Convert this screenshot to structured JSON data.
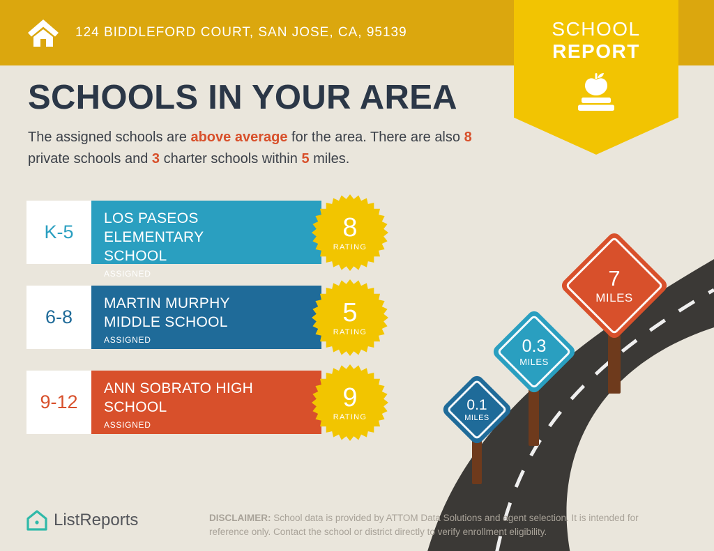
{
  "colors": {
    "topbar_gold": "#DBA70E",
    "ribbon_yellow": "#F2C402",
    "badge_yellow": "#F2C500",
    "background_beige": "#EAE6DC",
    "title_navy": "#2B3747",
    "accent_orange": "#D8502B",
    "school_teal": "#2A9FC0",
    "school_blue": "#1F6B99",
    "road_gray": "#3B3936",
    "post_brown": "#6E3A1C",
    "brand_teal": "#2FB9A8"
  },
  "topbar": {
    "address": "124 BIDDLEFORD COURT, SAN JOSE, CA, 95139"
  },
  "ribbon": {
    "line1": "SCHOOL",
    "line2": "REPORT"
  },
  "intro": {
    "title": "SCHOOLS IN YOUR AREA",
    "segments": [
      {
        "text": "The assigned schools are ",
        "highlight": false
      },
      {
        "text": "above average",
        "highlight": true
      },
      {
        "text": " for the area. There are also ",
        "highlight": false
      },
      {
        "text": "8",
        "highlight": true
      },
      {
        "text": " private schools and ",
        "highlight": false
      },
      {
        "text": "3",
        "highlight": true
      },
      {
        "text": " charter schools within ",
        "highlight": false
      },
      {
        "text": "5",
        "highlight": true
      },
      {
        "text": " miles.",
        "highlight": false
      }
    ]
  },
  "schools": [
    {
      "grades": "K-5",
      "name": "LOS PASEOS ELEMENTARY SCHOOL",
      "status": "ASSIGNED",
      "rating": "8",
      "rating_label": "RATING",
      "color": "#2A9FC0"
    },
    {
      "grades": "6-8",
      "name": "MARTIN MURPHY MIDDLE SCHOOL",
      "status": "ASSIGNED",
      "rating": "5",
      "rating_label": "RATING",
      "color": "#1F6B99"
    },
    {
      "grades": "9-12",
      "name": "ANN SOBRATO HIGH SCHOOL",
      "status": "ASSIGNED",
      "rating": "9",
      "rating_label": "RATING",
      "color": "#D8502B"
    }
  ],
  "signs": [
    {
      "distance": "0.1",
      "unit": "MILES",
      "color": "#1F6B99"
    },
    {
      "distance": "0.3",
      "unit": "MILES",
      "color": "#2A9FC0"
    },
    {
      "distance": "7",
      "unit": "MILES",
      "color": "#D8502B"
    }
  ],
  "footer": {
    "brand": "ListReports",
    "disclaimer_label": "DISCLAIMER:",
    "disclaimer_text": "School data is provided by ATTOM Data Solutions and agent selection. It is intended for reference only. Contact the school or district directly to verify enrollment eligibility."
  }
}
